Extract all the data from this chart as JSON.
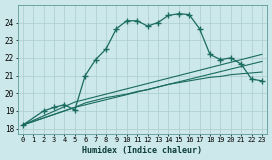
{
  "xlabel": "Humidex (Indice chaleur)",
  "bg_color": "#cce8ea",
  "grid_color": "#aacccc",
  "line_color": "#1a6b60",
  "xlim": [
    -0.5,
    23.5
  ],
  "ylim": [
    17.7,
    25.0
  ],
  "yticks": [
    18,
    19,
    20,
    21,
    22,
    23,
    24
  ],
  "xticks": [
    0,
    1,
    2,
    3,
    4,
    5,
    6,
    7,
    8,
    9,
    10,
    11,
    12,
    13,
    14,
    15,
    16,
    17,
    18,
    19,
    20,
    21,
    22,
    23
  ],
  "curve1_x": [
    0,
    2,
    3,
    4,
    5,
    6,
    7,
    8,
    9,
    10,
    11,
    12,
    13,
    14,
    15,
    16,
    17,
    18,
    19,
    20,
    21,
    22,
    23
  ],
  "curve1_y": [
    18.2,
    19.0,
    19.2,
    19.35,
    19.05,
    21.0,
    21.9,
    22.5,
    23.65,
    24.1,
    24.1,
    23.8,
    24.0,
    24.4,
    24.5,
    24.45,
    23.65,
    22.2,
    21.9,
    22.0,
    21.65,
    20.8,
    20.7
  ],
  "curve2_x": [
    0,
    5,
    6,
    7,
    8,
    9,
    10,
    11,
    12,
    13,
    14,
    15,
    16,
    17,
    18,
    19,
    20,
    21,
    22,
    23
  ],
  "curve2_y": [
    18.2,
    19.2,
    19.45,
    19.6,
    19.75,
    19.85,
    19.95,
    20.1,
    20.2,
    20.35,
    20.5,
    20.6,
    20.7,
    20.8,
    20.9,
    20.95,
    21.05,
    21.1,
    21.15,
    21.2
  ],
  "curve3_x": [
    0,
    5,
    23
  ],
  "curve3_y": [
    18.2,
    19.2,
    21.8
  ],
  "curve4_x": [
    0,
    5,
    23
  ],
  "curve4_y": [
    18.2,
    19.5,
    22.2
  ]
}
